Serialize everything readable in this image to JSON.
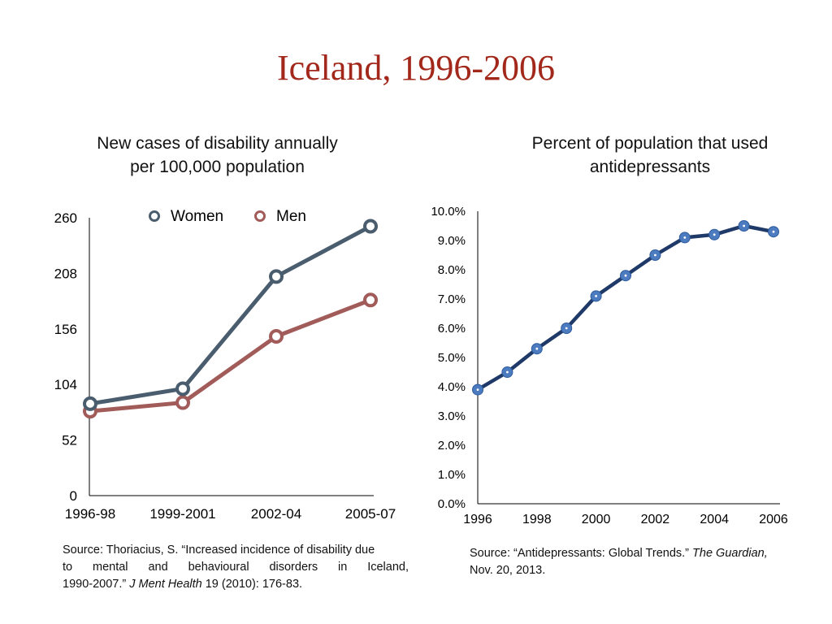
{
  "slide": {
    "title": "Iceland, 1996-2006"
  },
  "left_panel": {
    "title_line1": "New cases of disability annually",
    "title_line2": "per 100,000 population"
  },
  "right_panel": {
    "title_line1": "Percent of population that used",
    "title_line2": "antidepressants"
  },
  "sources": {
    "left": {
      "line1": "Source: Thoriacius, S. “Increased incidence of disability due",
      "line2": "to mental and behavioural disorders in Iceland,",
      "line3_pre": "1990-2007.” ",
      "line3_journal": "J Ment Health",
      "line3_post": " 19 (2010): 176-83."
    },
    "right": {
      "line1_pre": "Source:  “Antidepressants: Global Trends.” ",
      "line1_pub": "The Guardian,",
      "line2": "Nov. 20, 2013."
    }
  },
  "chart_data": [
    {
      "type": "line",
      "title": "",
      "categories": [
        "1996-98",
        "1999-2001",
        "2002-04",
        "2005-07"
      ],
      "ylim": [
        0,
        260
      ],
      "yticks": [
        "0",
        "52",
        "104",
        "156",
        "208",
        "260"
      ],
      "legend_position": "top",
      "grid": false,
      "series": [
        {
          "name": "Women",
          "values": [
            86,
            100,
            205,
            252
          ],
          "color": "#4a5d6e"
        },
        {
          "name": "Men",
          "values": [
            79,
            87,
            149,
            183
          ],
          "color": "#a15b59"
        }
      ]
    },
    {
      "type": "line",
      "title": "",
      "x": [
        1996,
        1997,
        1998,
        1999,
        2000,
        2001,
        2002,
        2003,
        2004,
        2005,
        2006
      ],
      "xticks": [
        "1996",
        "1998",
        "2000",
        "2002",
        "2004",
        "2006"
      ],
      "ylim": [
        0,
        10
      ],
      "yticks": [
        "0.0%",
        "1.0%",
        "2.0%",
        "3.0%",
        "4.0%",
        "5.0%",
        "6.0%",
        "7.0%",
        "8.0%",
        "9.0%",
        "10.0%"
      ],
      "grid": false,
      "series": [
        {
          "values": [
            3.9,
            4.5,
            5.3,
            6.0,
            7.1,
            7.8,
            8.5,
            9.1,
            9.2,
            9.5,
            9.3
          ],
          "color": "#1f3a68"
        }
      ]
    }
  ]
}
